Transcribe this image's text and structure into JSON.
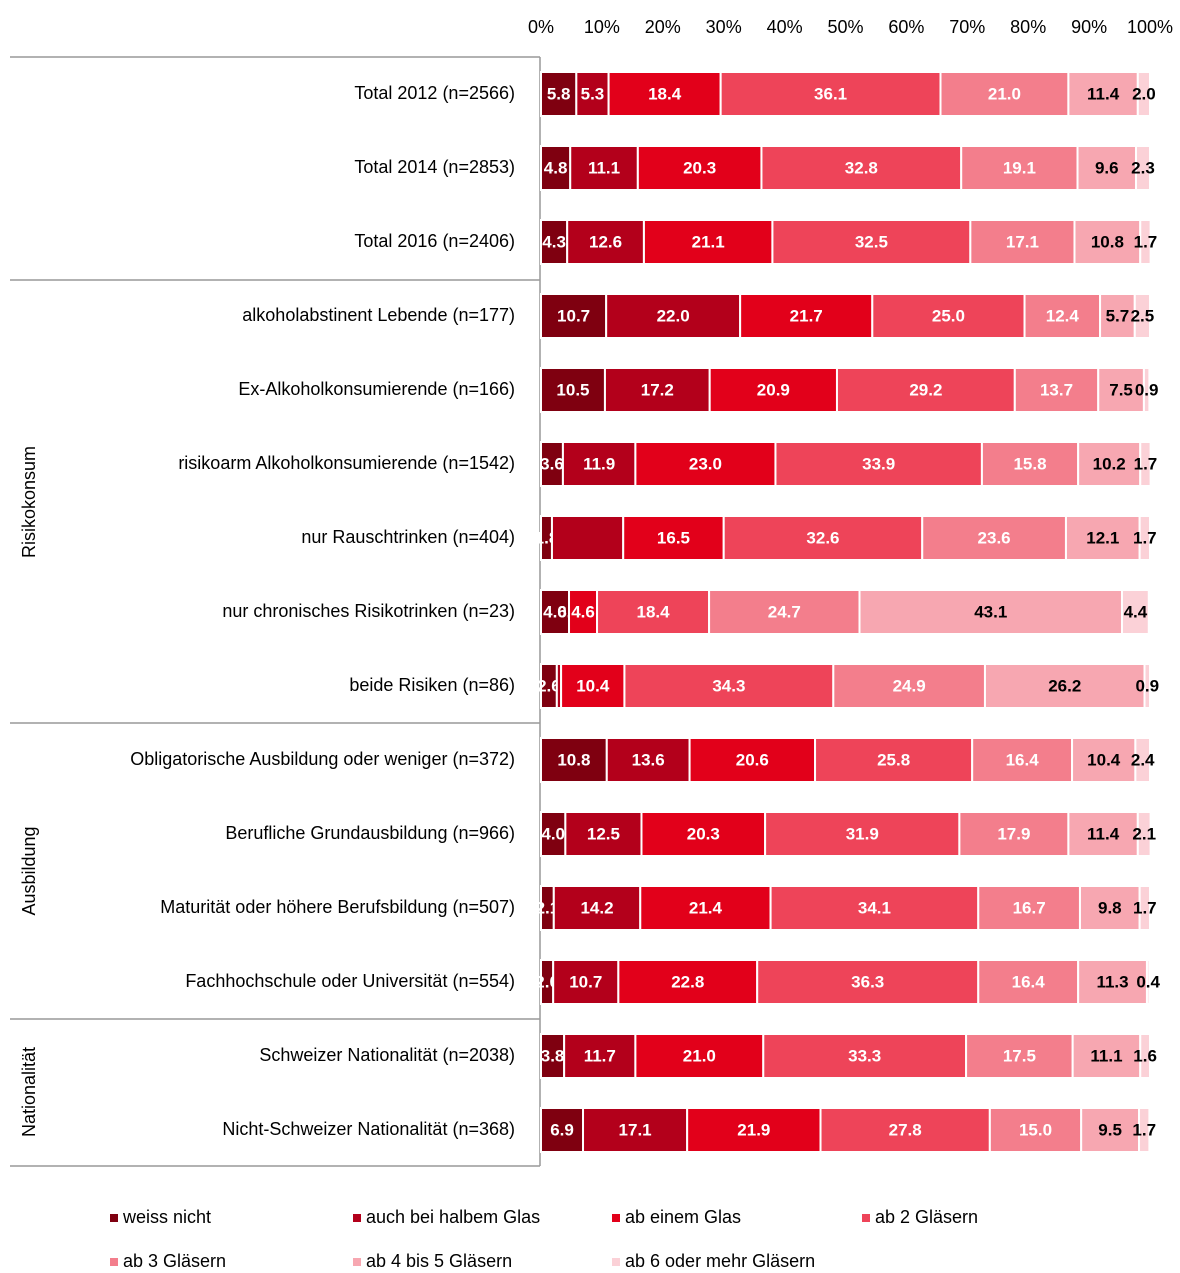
{
  "chart_data": {
    "type": "stacked-barh",
    "xlim": [
      0,
      100
    ],
    "xticks": [
      {
        "value": 0,
        "label": "0%"
      },
      {
        "value": 10,
        "label": "10%"
      },
      {
        "value": 20,
        "label": "20%"
      },
      {
        "value": 30,
        "label": "30%"
      },
      {
        "value": 40,
        "label": "40%"
      },
      {
        "value": 50,
        "label": "50%"
      },
      {
        "value": 60,
        "label": "60%"
      },
      {
        "value": 70,
        "label": "70%"
      },
      {
        "value": 80,
        "label": "80%"
      },
      {
        "value": 90,
        "label": "90%"
      },
      {
        "value": 100,
        "label": "100%"
      }
    ],
    "categories": [
      "Total 2012 (n=2566)",
      "Total 2014 (n=2853)",
      "Total 2016 (n=2406)",
      "alkoholabstinent Lebende (n=177)",
      "Ex-Alkoholkonsumierende (n=166)",
      "risikoarm Alkoholkonsumierende (n=1542)",
      "nur  Rauschtrinken (n=404)",
      "nur chronisches Risikotrinken (n=23)",
      "beide Risiken (n=86)",
      "Obligatorische Ausbildung oder weniger (n=372)",
      "Berufliche Grundausbildung (n=966)",
      "Maturität oder höhere Berufsbildung (n=507)",
      "Fachhochschule oder Universität (n=554)",
      "Schweizer Nationalität (n=2038)",
      "Nicht-Schweizer Nationalität (n=368)"
    ],
    "groups": [
      "Risikokonsum",
      "Ausbildung",
      "Nationalität"
    ],
    "series": [
      {
        "name": "weiss nicht",
        "color": "#7f0010",
        "label_color": "#ffffff",
        "values": [
          5.8,
          4.8,
          4.3,
          10.7,
          10.5,
          3.6,
          1.8,
          4.6,
          2.6,
          10.8,
          4.0,
          2.1,
          2.0,
          3.8,
          6.9
        ],
        "value_labels": [
          "5.8",
          "4.8",
          "4.3",
          "10.7",
          "10.5",
          "3.6",
          "1.8",
          "4.6",
          "2.6",
          "10.8",
          "4.0",
          "2.1",
          "2.0",
          "3.8",
          "6.9"
        ]
      },
      {
        "name": "auch bei halbem Glas",
        "color": "#b3001b",
        "label_color": "#ffffff",
        "values": [
          5.3,
          11.1,
          12.6,
          22.0,
          17.2,
          11.9,
          11.7,
          0.0,
          0.7,
          13.6,
          12.5,
          14.2,
          10.7,
          11.7,
          17.1
        ],
        "value_labels": [
          "5.3",
          "11.1",
          "12.6",
          "22.0",
          "17.2",
          "11.9",
          null,
          "0.0",
          null,
          "13.6",
          "12.5",
          "14.2",
          "10.7",
          "11.7",
          "17.1"
        ]
      },
      {
        "name": "ab einem Glas",
        "color": "#e2001a",
        "label_color": "#ffffff",
        "values": [
          18.4,
          20.3,
          21.1,
          21.7,
          20.9,
          23.0,
          16.5,
          4.6,
          10.4,
          20.6,
          20.3,
          21.4,
          22.8,
          21.0,
          21.9
        ],
        "value_labels": [
          "18.4",
          "20.3",
          "21.1",
          "21.7",
          "20.9",
          "23.0",
          "16.5",
          "4.6",
          "10.4",
          "20.6",
          "20.3",
          "21.4",
          "22.8",
          "21.0",
          "21.9"
        ]
      },
      {
        "name": "ab 2 Gläsern",
        "color": "#ee4459",
        "label_color": "#ffffff",
        "values": [
          36.1,
          32.8,
          32.5,
          25.0,
          29.2,
          33.9,
          32.6,
          18.4,
          34.3,
          25.8,
          31.9,
          34.1,
          36.3,
          33.3,
          27.8
        ],
        "value_labels": [
          "36.1",
          "32.8",
          "32.5",
          "25.0",
          "29.2",
          "33.9",
          "32.6",
          "18.4",
          "34.3",
          "25.8",
          "31.9",
          "34.1",
          "36.3",
          "33.3",
          "27.8"
        ]
      },
      {
        "name": "ab 3 Gläsern",
        "color": "#f37e8c",
        "label_color": "#ffffff",
        "values": [
          21.0,
          19.1,
          17.1,
          12.4,
          13.7,
          15.8,
          23.6,
          24.7,
          24.9,
          16.4,
          17.9,
          16.7,
          16.4,
          17.5,
          15.0
        ],
        "value_labels": [
          "21.0",
          "19.1",
          "17.1",
          "12.4",
          "13.7",
          "15.8",
          "23.6",
          "24.7",
          "24.9",
          "16.4",
          "17.9",
          "16.7",
          "16.4",
          "17.5",
          "15.0"
        ]
      },
      {
        "name": "ab 4 bis 5 Gläsern",
        "color": "#f7a7b1",
        "label_color": "#000000",
        "values": [
          11.4,
          9.6,
          10.8,
          5.7,
          7.5,
          10.2,
          12.1,
          43.1,
          26.2,
          10.4,
          11.4,
          9.8,
          11.3,
          11.1,
          9.5
        ],
        "value_labels": [
          "11.4",
          "9.6",
          "10.8",
          "5.7",
          "7.5",
          "10.2",
          "12.1",
          "43.1",
          "26.2",
          "10.4",
          "11.4",
          "9.8",
          "11.3",
          "11.1",
          "9.5"
        ]
      },
      {
        "name": "ab 6 oder mehr Gläsern",
        "color": "#fbd1d7",
        "label_color": "#000000",
        "values": [
          2.0,
          2.3,
          1.7,
          2.5,
          0.9,
          1.7,
          1.7,
          4.4,
          0.9,
          2.4,
          2.1,
          1.7,
          0.4,
          1.6,
          1.7
        ],
        "value_labels": [
          "2.0",
          "2.3",
          "1.7",
          "2.5",
          "0.9",
          "1.7",
          "1.7",
          "4.4",
          "0.9",
          "2.4",
          "2.1",
          "1.7",
          "0.4",
          "1.6",
          "1.7"
        ]
      }
    ]
  }
}
